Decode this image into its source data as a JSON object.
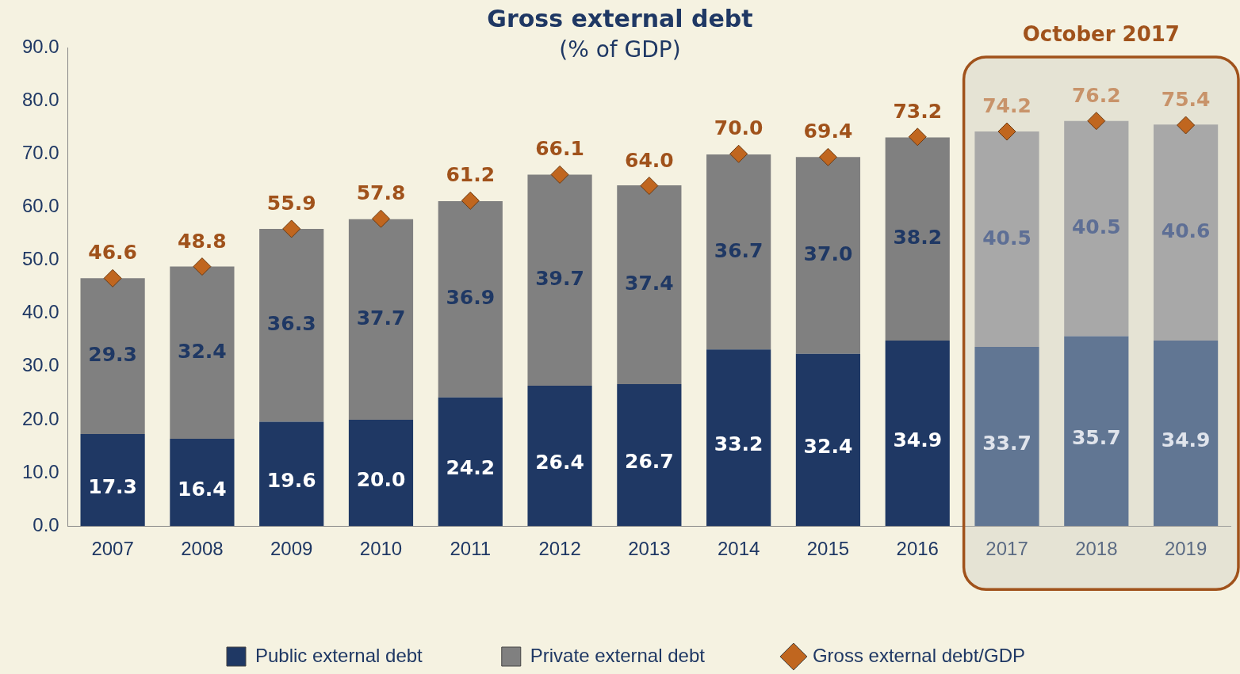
{
  "chart_data": {
    "type": "bar",
    "title": "Gross external debt",
    "subtitle": "(% of GDP)",
    "categories": [
      "2007",
      "2008",
      "2009",
      "2010",
      "2011",
      "2012",
      "2013",
      "2014",
      "2015",
      "2016",
      "2017",
      "2018",
      "2019"
    ],
    "stacked": true,
    "grid": false,
    "legend": "bottom",
    "ylim": [
      0,
      90
    ],
    "yticks": [
      {
        "value": 0,
        "label": "0.0"
      },
      {
        "value": 10,
        "label": "10.0"
      },
      {
        "value": 20,
        "label": "20.0"
      },
      {
        "value": 30,
        "label": "30.0"
      },
      {
        "value": 40,
        "label": "40.0"
      },
      {
        "value": 50,
        "label": "50.0"
      },
      {
        "value": 60,
        "label": "60.0"
      },
      {
        "value": 70,
        "label": "70.0"
      },
      {
        "value": 80,
        "label": "80.0"
      },
      {
        "value": 90,
        "label": "90.0"
      }
    ],
    "series": [
      {
        "name": "Public external debt",
        "color": "#1f3864",
        "colors": [
          "#1f3864",
          "#1f3864",
          "#1f3864",
          "#1f3864",
          "#1f3864",
          "#1f3864",
          "#1f3864",
          "#1f3864",
          "#1f3864",
          "#1f3864",
          "#617693",
          "#617693",
          "#617693"
        ],
        "values": [
          17.3,
          16.4,
          19.6,
          20.0,
          24.2,
          26.4,
          26.7,
          33.2,
          32.4,
          34.9,
          33.7,
          35.7,
          34.9
        ],
        "value_labels": [
          "17.3",
          "16.4",
          "19.6",
          "20.0",
          "24.2",
          "26.4",
          "26.7",
          "33.2",
          "32.4",
          "34.9",
          "33.7",
          "35.7",
          "34.9"
        ]
      },
      {
        "name": "Private external debt",
        "color": "#808080",
        "colors": [
          "#808080",
          "#808080",
          "#808080",
          "#808080",
          "#808080",
          "#808080",
          "#808080",
          "#808080",
          "#808080",
          "#808080",
          "#a8a8a8",
          "#a8a8a8",
          "#a8a8a8"
        ],
        "values": [
          29.3,
          32.4,
          36.3,
          37.7,
          36.9,
          39.7,
          37.4,
          36.7,
          37.0,
          38.2,
          40.5,
          40.5,
          40.6
        ],
        "value_labels": [
          "29.3",
          "32.4",
          "36.3",
          "37.7",
          "36.9",
          "39.7",
          "37.4",
          "36.7",
          "37.0",
          "38.2",
          "40.5",
          "40.5",
          "40.6"
        ]
      },
      {
        "name": "Gross external debt/GDP",
        "type": "scatter",
        "marker": "diamond",
        "color": "#c0661f",
        "values": [
          46.6,
          48.8,
          55.9,
          57.8,
          61.2,
          66.1,
          64.0,
          70.0,
          69.4,
          73.2,
          74.2,
          76.2,
          75.4
        ],
        "value_labels": [
          "46.6",
          "48.8",
          "55.9",
          "57.8",
          "61.2",
          "66.1",
          "64.0",
          "70.0",
          "69.4",
          "73.2",
          "74.2",
          "76.2",
          "75.4"
        ]
      }
    ],
    "bands": [
      {
        "axis": "x",
        "from": "2017",
        "to": "2019",
        "label": "October 2017",
        "color": "#a0521b"
      }
    ]
  }
}
